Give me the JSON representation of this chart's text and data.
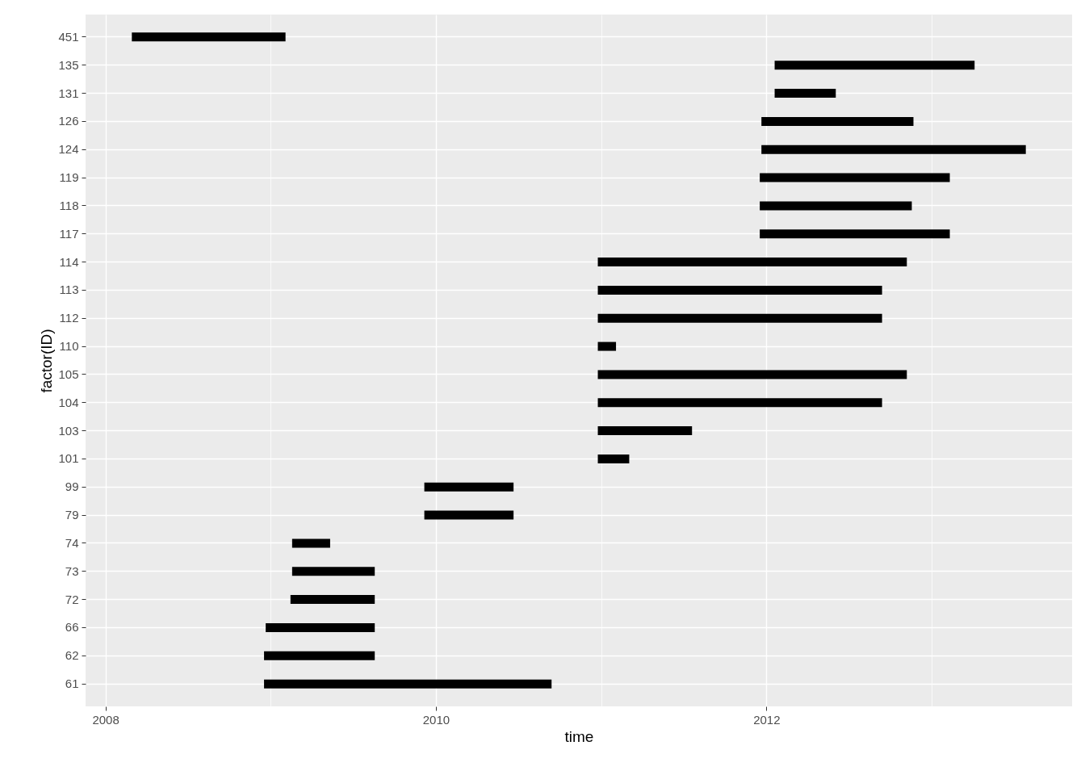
{
  "chart_data": {
    "type": "bar",
    "orientation": "horizontal",
    "xlabel": "time",
    "ylabel": "factor(ID)",
    "categories": [
      "451",
      "135",
      "131",
      "126",
      "124",
      "119",
      "118",
      "117",
      "114",
      "113",
      "112",
      "110",
      "105",
      "104",
      "103",
      "101",
      "99",
      "79",
      "74",
      "73",
      "72",
      "66",
      "62",
      "61"
    ],
    "base": [
      2008.16,
      2012.05,
      2012.05,
      2011.97,
      2011.97,
      2011.96,
      2011.96,
      2011.96,
      2010.98,
      2010.98,
      2010.98,
      2010.98,
      2010.98,
      2010.98,
      2010.98,
      2010.98,
      2009.93,
      2009.93,
      2009.13,
      2009.13,
      2009.12,
      2008.97,
      2008.96,
      2008.96
    ],
    "values": [
      0.93,
      1.21,
      0.37,
      0.92,
      1.6,
      1.15,
      0.92,
      1.15,
      1.87,
      1.72,
      1.72,
      0.11,
      1.87,
      1.72,
      0.57,
      0.19,
      0.54,
      0.54,
      0.23,
      0.5,
      0.51,
      0.66,
      0.67,
      1.74
    ],
    "color": "#000000",
    "xlim": [
      2007.88,
      2013.85
    ],
    "xticks": [
      2008,
      {
        "value": 2009,
        "label": null
      },
      2010,
      {
        "value": 2011,
        "label": null
      },
      2012,
      {
        "value": 2013,
        "label": null
      }
    ],
    "grid": true
  }
}
